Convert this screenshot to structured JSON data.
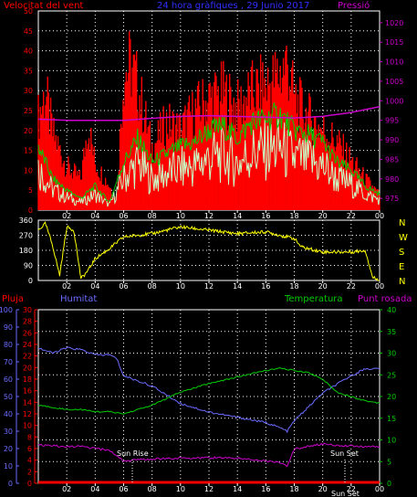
{
  "header": {
    "wind_speed_label": "Velocitat del vent",
    "subtitle": "24 hora gràfiques , 29 Junio 2017",
    "pressure_label": "Pressió"
  },
  "panel2": {
    "direction_letters": [
      "N",
      "W",
      "S",
      "E",
      "N"
    ]
  },
  "panel3": {
    "rain_label": "Pluja",
    "humidity_label": "Humitat",
    "temperature_label": "Temperatura",
    "dewpoint_label": "Punt rosada",
    "sunrise_label": "Sun Rise",
    "sunset_label": "Sun Set",
    "sunset_small_label": "Sun Set"
  },
  "colors": {
    "wind_speed": "#ff0000",
    "wind_gust": "#c8ffc8",
    "wind_avg": "#00cc00",
    "pressure": "#cc00cc",
    "direction": "#ffff00",
    "humidity": "#6b6bff",
    "temperature": "#00cc00",
    "dewpoint": "#cc00cc",
    "rain": "#ff0000"
  },
  "chart_data": [
    {
      "type": "area",
      "x_ticks": [
        "02",
        "04",
        "06",
        "08",
        "10",
        "12",
        "14",
        "16",
        "18",
        "20",
        "22",
        "00"
      ],
      "left_axis": {
        "ylim": [
          0,
          50
        ],
        "ticks": [
          0,
          5,
          10,
          15,
          20,
          25,
          30,
          35,
          40,
          45,
          50
        ]
      },
      "right_axis": {
        "ylim": [
          972,
          1023
        ],
        "ticks": [
          975,
          980,
          985,
          990,
          995,
          1000,
          1005,
          1010,
          1015,
          1020
        ]
      },
      "series": [
        {
          "name": "Velocitat del vent",
          "hours": [
            0,
            0.5,
            1,
            2,
            3,
            3.5,
            4,
            5,
            5.5,
            6,
            6.5,
            7,
            8,
            9,
            10,
            11,
            12,
            13,
            14,
            15,
            16,
            17,
            17.5,
            18,
            19,
            20,
            21,
            22,
            23,
            24
          ],
          "values": [
            30,
            38,
            25,
            14,
            10,
            28,
            15,
            8,
            3,
            44,
            47,
            40,
            20,
            28,
            26,
            32,
            36,
            38,
            33,
            38,
            40,
            44,
            48,
            36,
            30,
            26,
            22,
            16,
            10,
            5
          ]
        },
        {
          "name": "avg",
          "hours": [
            0,
            1,
            2,
            3,
            4,
            5,
            6,
            7,
            8,
            9,
            10,
            11,
            12,
            13,
            14,
            15,
            16,
            17,
            18,
            19,
            20,
            21,
            22,
            23,
            24
          ],
          "values": [
            16,
            8,
            5,
            3,
            6,
            2,
            12,
            18,
            12,
            14,
            16,
            17,
            20,
            21,
            18,
            22,
            23,
            24,
            20,
            19,
            17,
            12,
            10,
            6,
            4
          ]
        },
        {
          "name": "Pressió",
          "hours": [
            0,
            2,
            4,
            6,
            8,
            10,
            12,
            14,
            16,
            18,
            20,
            22,
            24
          ],
          "values": [
            995.3,
            995.0,
            995.0,
            995.0,
            995.5,
            996.0,
            996.2,
            996.0,
            995.8,
            995.6,
            996.0,
            997.0,
            998.5
          ]
        }
      ]
    },
    {
      "type": "line",
      "x_ticks": [
        "02",
        "04",
        "06",
        "08",
        "10",
        "12",
        "14",
        "16",
        "18",
        "20",
        "22",
        "00"
      ],
      "ylim": [
        0,
        360
      ],
      "yticks": [
        0,
        90,
        180,
        270,
        360
      ],
      "series": [
        {
          "name": "direction",
          "hours": [
            0,
            0.5,
            1,
            1.5,
            2,
            2.5,
            3,
            3.5,
            4,
            5,
            6,
            8,
            10,
            12,
            14,
            16,
            18,
            18.5,
            20,
            22,
            23,
            23.5,
            24
          ],
          "values": [
            300,
            340,
            210,
            30,
            320,
            300,
            10,
            60,
            130,
            190,
            260,
            280,
            320,
            300,
            280,
            290,
            250,
            200,
            170,
            170,
            180,
            20,
            0
          ]
        }
      ]
    },
    {
      "type": "line",
      "x_ticks": [
        "02",
        "04",
        "06",
        "08",
        "10",
        "12",
        "14",
        "16",
        "18",
        "20",
        "22",
        "00"
      ],
      "axes": {
        "rain_pct": {
          "ylim": [
            0,
            100
          ],
          "ticks": [
            0,
            10,
            20,
            30,
            40,
            50,
            60,
            70,
            80,
            90,
            100
          ]
        },
        "celsius_left": {
          "ylim": [
            0,
            30
          ],
          "ticks": [
            0,
            2,
            4,
            6,
            8,
            10,
            12,
            14,
            16,
            18,
            20,
            22,
            24,
            26,
            28,
            30
          ]
        },
        "celsius_right": {
          "ylim": [
            0,
            40
          ],
          "ticks": [
            0,
            5,
            10,
            15,
            20,
            25,
            30,
            35,
            40
          ]
        }
      },
      "series": [
        {
          "name": "Humitat",
          "hours": [
            0,
            1,
            2,
            3,
            4,
            5,
            5.5,
            6,
            8,
            10,
            12,
            14,
            16,
            17,
            17.5,
            18,
            20,
            22,
            23,
            24
          ],
          "values": [
            78,
            75,
            78,
            77,
            74,
            74,
            72,
            62,
            56,
            46,
            41,
            38,
            35,
            32,
            30,
            36,
            52,
            62,
            66,
            66
          ]
        },
        {
          "name": "Temperatura",
          "hours": [
            0,
            1,
            2,
            3,
            4,
            5,
            6,
            8,
            10,
            12,
            14,
            16,
            17,
            18,
            19,
            20,
            21,
            22,
            23,
            24
          ],
          "values": [
            18,
            17.5,
            17,
            17,
            16.5,
            16.5,
            16,
            18,
            21,
            23,
            24.5,
            26,
            26.5,
            26,
            25.5,
            24,
            21,
            20,
            19,
            18.5
          ]
        },
        {
          "name": "Punt rosada",
          "hours": [
            0,
            1,
            2,
            3,
            4,
            5,
            6,
            8,
            10,
            12,
            14,
            16,
            17,
            17.5,
            18,
            19,
            20,
            22,
            24
          ],
          "values": [
            8.8,
            8.6,
            8.4,
            8.5,
            8.0,
            7.6,
            5.2,
            5.6,
            5.8,
            5.9,
            5.8,
            5.2,
            4.8,
            3.8,
            7.8,
            8.6,
            9.0,
            8.6,
            8.4
          ]
        },
        {
          "name": "Pluja",
          "hours": [
            0,
            24
          ],
          "values": [
            0,
            0
          ]
        }
      ],
      "annotations": [
        {
          "label": "Sun Rise",
          "hour": 6.1
        },
        {
          "label": "Sun Set",
          "hour": 21.3
        }
      ]
    }
  ]
}
